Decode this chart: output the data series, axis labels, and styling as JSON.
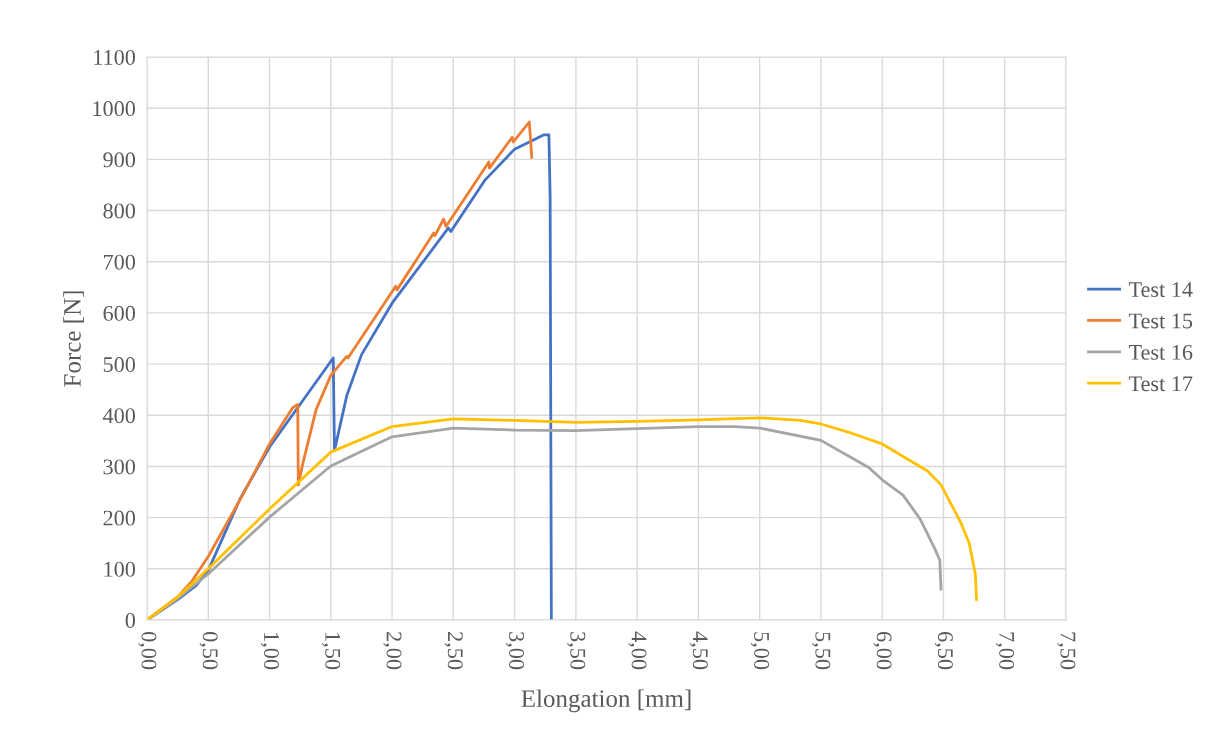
{
  "chart_data": {
    "type": "line",
    "xlabel": "Elongation [mm]",
    "ylabel": "Force [N]",
    "xlim": [
      0,
      7.5
    ],
    "ylim": [
      0,
      1100
    ],
    "xticks": [
      {
        "value": 0,
        "label": "0,00"
      },
      {
        "value": 0.5,
        "label": "0,50"
      },
      {
        "value": 1,
        "label": "1,00"
      },
      {
        "value": 1.5,
        "label": "1,50"
      },
      {
        "value": 2,
        "label": "2,00"
      },
      {
        "value": 2.5,
        "label": "2,50"
      },
      {
        "value": 3,
        "label": "3,00"
      },
      {
        "value": 3.5,
        "label": "3,50"
      },
      {
        "value": 4,
        "label": "4,00"
      },
      {
        "value": 4.5,
        "label": "4,50"
      },
      {
        "value": 5,
        "label": "5,00"
      },
      {
        "value": 5.5,
        "label": "5,50"
      },
      {
        "value": 6,
        "label": "6,00"
      },
      {
        "value": 6.5,
        "label": "6,50"
      },
      {
        "value": 7,
        "label": "7,00"
      },
      {
        "value": 7.5,
        "label": "7,50"
      }
    ],
    "yticks": [
      0,
      100,
      200,
      300,
      400,
      500,
      600,
      700,
      800,
      900,
      1000,
      1100
    ],
    "grid": true,
    "legend": "right",
    "marker": "none",
    "line_style": "solid",
    "series": [
      {
        "name": "Test 14",
        "color": "#4472c4",
        "x": [
          0,
          0.25,
          0.4,
          0.5,
          0.76,
          1.0,
          1.52,
          1.53,
          1.63,
          1.75,
          2.0,
          2.46,
          2.48,
          2.76,
          3.0,
          3.24,
          3.28,
          3.29,
          3.3
        ],
        "values": [
          0,
          40,
          67,
          97,
          237,
          338,
          512,
          331,
          438,
          518,
          619,
          766,
          759,
          860,
          920,
          948,
          948,
          826,
          3
        ]
      },
      {
        "name": "Test 15",
        "color": "#ed7d31",
        "x": [
          0,
          0.25,
          0.37,
          0.5,
          0.78,
          1.0,
          1.19,
          1.23,
          1.235,
          1.27,
          1.38,
          1.5,
          1.63,
          1.64,
          2.03,
          2.04,
          2.34,
          2.35,
          2.42,
          2.44,
          2.79,
          2.795,
          2.98,
          2.99,
          3.12,
          3.14
        ],
        "values": [
          0,
          45,
          77,
          124,
          244,
          344,
          415,
          421,
          264,
          304,
          411,
          478,
          515,
          512,
          652,
          645,
          756,
          751,
          783,
          769,
          895,
          883,
          943,
          934,
          973,
          904
        ]
      },
      {
        "name": "Test 16",
        "color": "#a5a5a5",
        "x": [
          0,
          0.25,
          0.5,
          1.0,
          1.5,
          2.0,
          2.5,
          3.0,
          3.5,
          4.0,
          4.5,
          4.8,
          5.0,
          5.5,
          5.89,
          6.0,
          6.17,
          6.31,
          6.42,
          6.47,
          6.48
        ],
        "values": [
          0,
          42,
          90,
          201,
          301,
          358,
          375,
          371,
          370,
          374,
          378,
          378,
          375,
          351,
          298,
          274,
          244,
          197,
          144,
          117,
          60
        ]
      },
      {
        "name": "Test 17",
        "color": "#ffc000",
        "x": [
          0,
          0.25,
          0.5,
          1.0,
          1.5,
          2.0,
          2.5,
          3.0,
          3.5,
          4.0,
          4.5,
          5.0,
          5.33,
          5.5,
          5.75,
          6.0,
          6.37,
          6.48,
          6.64,
          6.71,
          6.76,
          6.77
        ],
        "values": [
          0,
          45,
          100,
          217,
          328,
          378,
          393,
          390,
          386,
          388,
          391,
          395,
          390,
          383,
          365,
          344,
          291,
          264,
          191,
          150,
          90,
          40
        ]
      }
    ]
  }
}
